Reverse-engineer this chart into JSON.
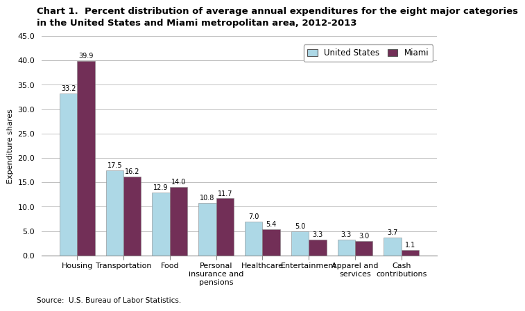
{
  "title": "Chart 1.  Percent distribution of average annual expenditures for the eight major categories\nin the United States and Miami metropolitan area, 2012-2013",
  "categories": [
    "Housing",
    "Transportation",
    "Food",
    "Personal\ninsurance and\npensions",
    "Healthcare",
    "Entertainment",
    "Apparel and\nservices",
    "Cash\ncontributions"
  ],
  "us_values": [
    33.2,
    17.5,
    12.9,
    10.8,
    7.0,
    5.0,
    3.3,
    3.7
  ],
  "miami_values": [
    39.9,
    16.2,
    14.0,
    11.7,
    5.4,
    3.3,
    3.0,
    1.1
  ],
  "us_color": "#ADD8E6",
  "miami_color": "#722F57",
  "ylabel": "Expenditure shares",
  "ylim": [
    0,
    45
  ],
  "yticks": [
    0.0,
    5.0,
    10.0,
    15.0,
    20.0,
    25.0,
    30.0,
    35.0,
    40.0,
    45.0
  ],
  "source": "Source:  U.S. Bureau of Labor Statistics.",
  "legend_labels": [
    "United States",
    "Miami"
  ],
  "bar_width": 0.38,
  "title_fontsize": 9.5,
  "label_fontsize": 8,
  "tick_fontsize": 8,
  "value_fontsize": 7,
  "legend_fontsize": 8.5
}
